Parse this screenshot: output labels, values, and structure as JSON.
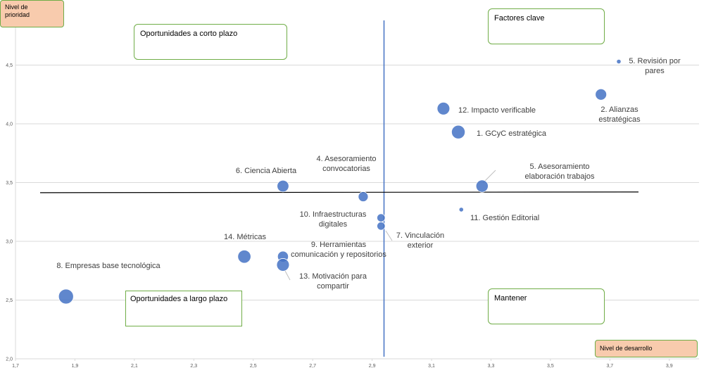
{
  "axis_titles": {
    "y": "Nivel de\nprioridad",
    "x": "Nivel de desarrollo"
  },
  "quadrants": {
    "top_left": "Oportunidades a corto plazo",
    "top_right": "Factores clave",
    "bottom_left": "Oportunidades a largo plazo",
    "bottom_right": "Mantener"
  },
  "colors": {
    "bubble": "#4472c4",
    "vertical_line": "#4472c4",
    "horizontal_line": "#000000",
    "grid": "#d9d9d9",
    "quadrant_border": "#70ad47",
    "axis_title_fill": "#f8cbad"
  },
  "chart_data": {
    "type": "scatter",
    "subtype": "bubble",
    "xlim": [
      1.7,
      4.0
    ],
    "ylim": [
      2.0,
      5.0
    ],
    "x_ticks": [
      "1,7",
      "1,9",
      "2,1",
      "2,3",
      "2,5",
      "2,7",
      "2,9",
      "3,1",
      "3,3",
      "3,5",
      "3,7",
      "3,9"
    ],
    "y_ticks": [
      "2,0",
      "2,5",
      "3,0",
      "3,5",
      "4,0",
      "4,5"
    ],
    "grid": "horizontal",
    "points": [
      {
        "label": "1. GCyC estratégica",
        "x": 3.19,
        "y": 3.93,
        "size": 3
      },
      {
        "label": "2. Alianzas estratégicas",
        "x": 3.67,
        "y": 4.25,
        "size": 2.5
      },
      {
        "label": "4. Asesoramiento convocatorias",
        "x": 2.87,
        "y": 3.38,
        "size": 2.2
      },
      {
        "label": "5. Asesoramiento elaboración trabajos",
        "x": 3.27,
        "y": 3.47,
        "size": 2.7
      },
      {
        "label": "5. Revisión por pares",
        "x": 3.73,
        "y": 4.53,
        "size": 1.0
      },
      {
        "label": "6. Ciencia Abierta",
        "x": 2.6,
        "y": 3.47,
        "size": 2.6
      },
      {
        "label": "7. Vinculación exterior",
        "x": 2.93,
        "y": 3.13,
        "size": 1.8
      },
      {
        "label": "8. Empresas base tecnológica",
        "x": 1.87,
        "y": 2.53,
        "size": 3.3
      },
      {
        "label": "9. Herramientas comunicación y repositorios",
        "x": 2.6,
        "y": 2.87,
        "size": 2.4
      },
      {
        "label": "10. Infraestructuras digitales",
        "x": 2.93,
        "y": 3.2,
        "size": 1.8
      },
      {
        "label": "11. Gestión Editorial",
        "x": 3.2,
        "y": 3.27,
        "size": 1.0
      },
      {
        "label": "12. Impacto verificable",
        "x": 3.14,
        "y": 4.13,
        "size": 2.8
      },
      {
        "label": "13. Motivación para compartir",
        "x": 2.6,
        "y": 2.8,
        "size": 2.8
      },
      {
        "label": "14. Métricas",
        "x": 2.47,
        "y": 2.87,
        "size": 2.9
      }
    ],
    "reference_lines": {
      "vertical_x": 2.94,
      "horizontal_y": 3.42
    }
  }
}
